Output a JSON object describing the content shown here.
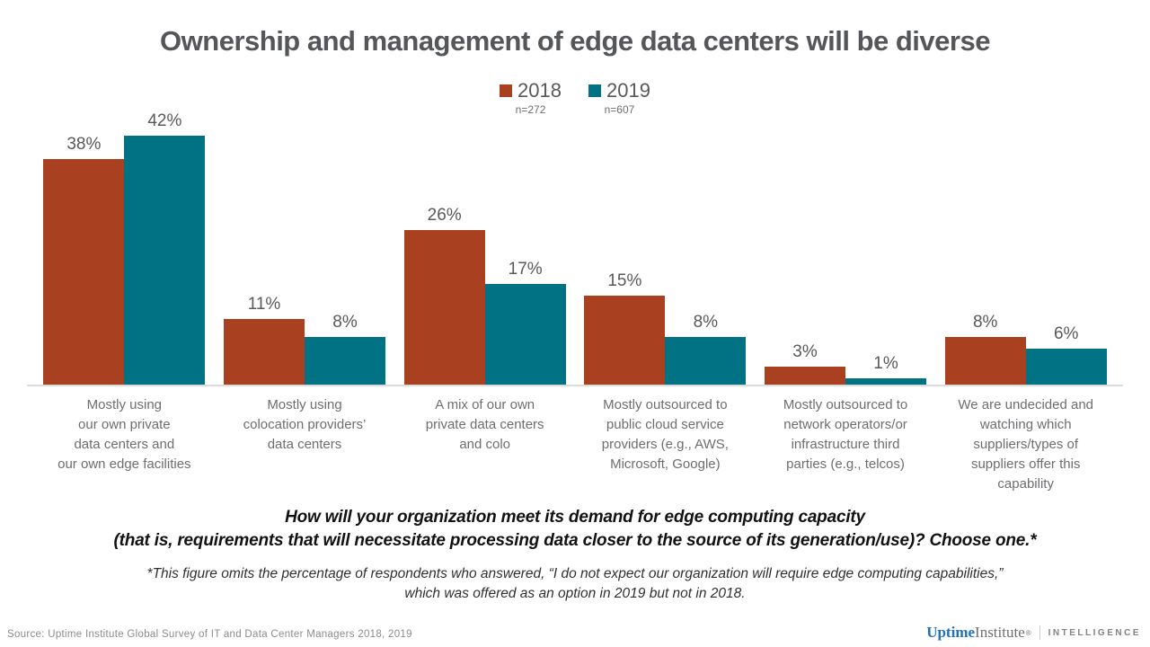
{
  "title": "Ownership and management of edge data centers will be diverse",
  "chart_data": {
    "type": "bar",
    "title": "Ownership and management of edge data centers will be diverse",
    "categories": [
      "Mostly using\nour own private\ndata centers and\nour own edge facilities",
      "Mostly using\ncolocation providers’\ndata centers",
      "A mix of our own\nprivate data centers\nand colo",
      "Mostly outsourced to\npublic cloud service\nproviders (e.g., AWS,\nMicrosoft, Google)",
      "Mostly outsourced to\nnetwork operators/or\ninfrastructure third\nparties (e.g., telcos)",
      "We are undecided and\nwatching which\nsuppliers/types of\nsuppliers offer this\ncapability"
    ],
    "series": [
      {
        "name": "2018",
        "n": "n=272",
        "color": "#A94020",
        "values": [
          38,
          11,
          26,
          15,
          3,
          8
        ]
      },
      {
        "name": "2019",
        "n": "n=607",
        "color": "#017284",
        "values": [
          42,
          8,
          17,
          8,
          1,
          6
        ]
      }
    ],
    "value_suffix": "%",
    "xlabel": "",
    "ylabel": "",
    "ylim": [
      0,
      45
    ],
    "grid": false,
    "legend_position": "top"
  },
  "question": {
    "line1": "How will your organization meet its demand for edge computing capacity",
    "line2": "(that is, requirements that will necessitate processing data closer to the source of its generation/use)? Choose one.*"
  },
  "footnote": {
    "line1": "*This figure omits the percentage of respondents who answered, “I do not expect our organization will require edge computing capabilities,”",
    "line2": "which was offered as an option in 2019 but not in 2018."
  },
  "footer": {
    "source": "Source: Uptime Institute Global Survey of IT and Data Center Managers 2018, 2019",
    "logo_uptime": "Uptime",
    "logo_institute": "Institute",
    "logo_mark": "®",
    "logo_intelligence": "INTELLIGENCE"
  }
}
